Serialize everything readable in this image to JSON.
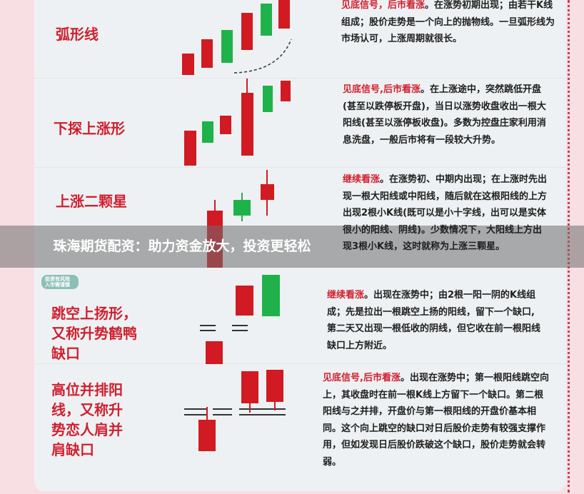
{
  "banner": {
    "text": "珠海期货配资：助力资金放大，投资更轻松"
  },
  "badge": {
    "text": "投资有风险 入市需谨慎"
  },
  "patterns": [
    {
      "name": "弧形线",
      "highlight": "见底信号，后市看涨",
      "text": "。在涨势初期出现；由若干K线组成；股价走势是一个向上的抛物线。一旦弧形线为市场认可，上涨周期就很长。"
    },
    {
      "name": "下探上涨形",
      "highlight": "见底信号,后市看涨",
      "text": "。在上涨途中，突然跳低开盘(甚至以跌停板开盘)，当日以涨势收盘收出一根大阳线(甚至以涨停板收盘)。多数为控盘庄家利用消息洗盘，一般后市将有一段较大升势。"
    },
    {
      "name": "上涨二颗星",
      "highlight": "继续看涨",
      "text": "。在涨势初、中期内出现；在上涨时先出现一根大阳线或中阳线，随后就在这根阳线的上方出现2根小K线(既可以是小十字线，出可以是实体很小的阳线、阴线)。少数情况下，大阳线上方出现3根小K线，这时就称为上涨三颗星。"
    },
    {
      "name": "跳空上扬形，又称升势鹤鸭缺口",
      "highlight": "继续看涨",
      "text": "。出现在涨势中；由2根一阳一阴的K线组成；先是拉出一根跳空上扬的阳线，留下一个缺口,第二天又出现一根低收的阴线，但它收在前一根阳线缺口上方附近。"
    },
    {
      "name": "高位并排阳线，又称升势恋人肩并肩缺口",
      "highlight": "见底信号,后市看涨",
      "text": "。出现在涨势中；第一根阳线跳空向上，其收盘时在前一根K线上方留下一个缺口。第二根阳线与之并排，开盘价与第一根阳线的开盘价基本相同。这个向上跳空的缺口对日后股价走势有较强支撑作用，但如发现日后股价跌破这个缺口，股价走势就会转弱。"
    }
  ],
  "colors": {
    "bullish_red": "#d11a22",
    "bearish_green": "#1fb24a",
    "accent": "#d0202f"
  }
}
